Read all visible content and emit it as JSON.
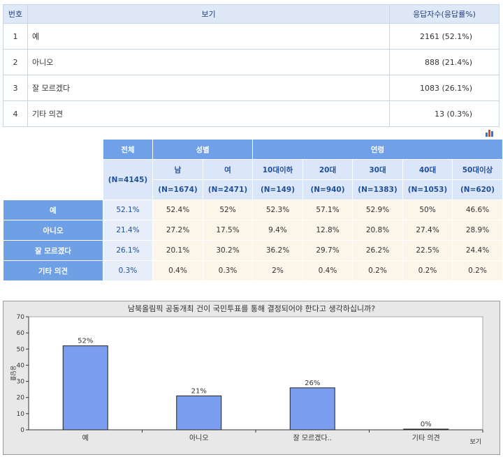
{
  "table1": {
    "headers": [
      "번호",
      "보기",
      "응답자수(응답률%)"
    ],
    "rows": [
      {
        "no": "1",
        "label": "예",
        "value": "2161 (52.1%)"
      },
      {
        "no": "2",
        "label": "아니오",
        "value": "888 (21.4%)"
      },
      {
        "no": "3",
        "label": "잘 모르겠다",
        "value": "1083 (26.1%)"
      },
      {
        "no": "4",
        "label": "기타 의견",
        "value": "13 (0.3%)"
      }
    ]
  },
  "table2": {
    "group_total": "전체",
    "group_gender": "성별",
    "group_age": "연령",
    "total_n": "(N=4145)",
    "sub_headers": [
      "남",
      "여",
      "10대이하",
      "20대",
      "30대",
      "40대",
      "50대이상"
    ],
    "sub_ns": [
      "(N=1674)",
      "(N=2471)",
      "(N=149)",
      "(N=940)",
      "(N=1383)",
      "(N=1053)",
      "(N=620)"
    ],
    "rows": [
      {
        "label": "예",
        "total": "52.1%",
        "cells": [
          "52.4%",
          "52%",
          "52.3%",
          "57.1%",
          "52.9%",
          "50%",
          "46.6%"
        ]
      },
      {
        "label": "아니오",
        "total": "21.4%",
        "cells": [
          "27.2%",
          "17.5%",
          "9.4%",
          "12.8%",
          "20.8%",
          "27.4%",
          "28.9%"
        ]
      },
      {
        "label": "잘 모르겠다",
        "total": "26.1%",
        "cells": [
          "20.1%",
          "30.2%",
          "36.2%",
          "29.7%",
          "26.2%",
          "22.5%",
          "24.4%"
        ]
      },
      {
        "label": "기타 의견",
        "total": "0.3%",
        "cells": [
          "0.4%",
          "0.3%",
          "2%",
          "0.4%",
          "0.2%",
          "0.2%",
          "0.2%"
        ]
      }
    ]
  },
  "chart_data": {
    "type": "bar",
    "title": "남북올림픽 공동개최 건이 국민투표를 통해 결정되어야 한다고 생각하십니까?",
    "categories": [
      "예",
      "아니오",
      "잘 모르겠다..",
      "기타 의견"
    ],
    "values": [
      52,
      21,
      26,
      0
    ],
    "value_labels": [
      "52%",
      "21%",
      "26%",
      "0%"
    ],
    "xlabel": "보기",
    "ylabel": "응답률",
    "ylim": [
      0,
      70
    ],
    "yticks": [
      "0",
      "10",
      "20",
      "30",
      "40",
      "50",
      "60",
      "70"
    ],
    "bar_color": "#7b9df0",
    "grid": false
  }
}
